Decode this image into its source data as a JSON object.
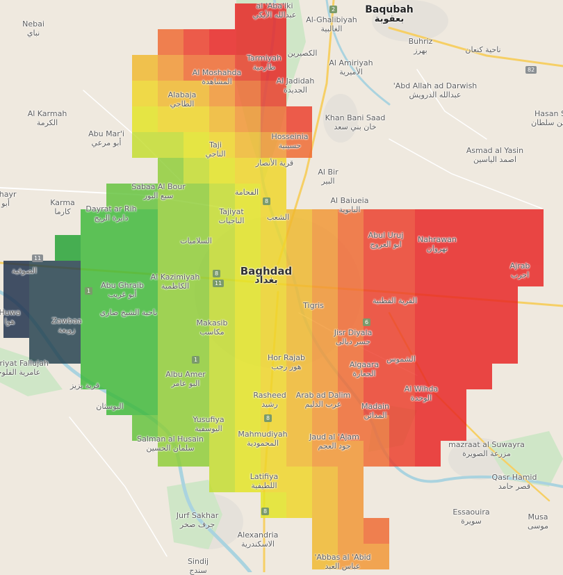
{
  "map": {
    "colors": {
      "land": "#efe9df",
      "urban": "#e6e2dc",
      "river": "#aad3df",
      "vegetation": "#cfe6c7",
      "major_road": "#f6cf65",
      "minor_road": "#ffffff"
    },
    "labels": [
      {
        "id": "nebai",
        "en": "Nebai",
        "ar": "نباي"
      },
      {
        "id": "alabaiki",
        "en": "al 'Aba'iki",
        "ar": "عبدالله الأيكي"
      },
      {
        "id": "alghalibiyah",
        "en": "Al-Ghalibiyah",
        "ar": "الغالبية"
      },
      {
        "id": "baqubah",
        "en": "Baqubah",
        "ar": "بعقوبة"
      },
      {
        "id": "buhriz",
        "en": "Buhriz",
        "ar": "بهرز"
      },
      {
        "id": "kanaan",
        "en": "",
        "ar": "ناحية كنعان"
      },
      {
        "id": "tarmiyah",
        "en": "Tarmiyah",
        "ar": "طارمية"
      },
      {
        "id": "alkaseerin",
        "en": "",
        "ar": "الكصيرين"
      },
      {
        "id": "alamiriyah",
        "en": "Al Amiriyah",
        "ar": "الأميرية"
      },
      {
        "id": "almoshahda",
        "en": "Al Moshahda",
        "ar": "المشاهدة"
      },
      {
        "id": "aljadidah",
        "en": "Al Jadidah",
        "ar": "الجديدة"
      },
      {
        "id": "alabaja",
        "en": "Alabaja",
        "ar": "الطاجي"
      },
      {
        "id": "abdallah",
        "en": "'Abd Allah ad Darwish",
        "ar": "عبدالله الدرويش"
      },
      {
        "id": "hasansu",
        "en": "Hasan Su",
        "ar": "حسن سلطان"
      },
      {
        "id": "alkarmah",
        "en": "Al Karmah",
        "ar": "الكرمة"
      },
      {
        "id": "khanbanisaad",
        "en": "Khan Bani Saad",
        "ar": "خان بني سعد"
      },
      {
        "id": "abumari",
        "en": "Abu Mar'i",
        "ar": "أبو مرعي"
      },
      {
        "id": "hosseinia",
        "en": "Hosseinia",
        "ar": "حسينية"
      },
      {
        "id": "taji",
        "en": "Taji",
        "ar": "التاجي"
      },
      {
        "id": "alansar",
        "en": "",
        "ar": "قرية الأنصار"
      },
      {
        "id": "asmad",
        "en": "Asmad al Yasin",
        "ar": "اصمد الياسين"
      },
      {
        "id": "albir",
        "en": "Al Bir",
        "ar": "البير"
      },
      {
        "id": "sabaa",
        "en": "Sabaa Al Bour",
        "ar": "سبع البور"
      },
      {
        "id": "khayr",
        "en": "khayr",
        "ar": "أبو"
      },
      {
        "id": "karma",
        "en": "Karma",
        "ar": "كارما"
      },
      {
        "id": "dayrat",
        "en": "Dayrat ar Rih",
        "ar": "دايرة الريح"
      },
      {
        "id": "alfajama",
        "en": "",
        "ar": "الفحامة"
      },
      {
        "id": "albaiueia",
        "en": "Al Baiueia",
        "ar": "البابوية"
      },
      {
        "id": "tajiyat",
        "en": "Tajiyat",
        "ar": "الناجيات"
      },
      {
        "id": "alshaab",
        "en": "",
        "ar": "الشعب"
      },
      {
        "id": "abuuruj",
        "en": "Abul Uruj",
        "ar": "ابو العروج"
      },
      {
        "id": "alsalamiyat",
        "en": "",
        "ar": "السلاميات"
      },
      {
        "id": "nahrawan",
        "en": "Nahrawan",
        "ar": "نهروان"
      },
      {
        "id": "fallujah_s",
        "en": "",
        "ar": "الصوفية"
      },
      {
        "id": "alkazimiyah",
        "en": "Al Kazimiyah",
        "ar": "الكاظمية"
      },
      {
        "id": "baghdad",
        "en": "Baghdad",
        "ar": "بغداد"
      },
      {
        "id": "ajrab",
        "en": "Ajrab",
        "ar": "اجرب"
      },
      {
        "id": "abughraib",
        "en": "Abu Ghraib",
        "ar": "أبو غريب"
      },
      {
        "id": "sheikh",
        "en": "",
        "ar": "ناحية الشيخ ضاري"
      },
      {
        "id": "qaryah",
        "en": "",
        "ar": "القرية القطنية"
      },
      {
        "id": "huwa",
        "en": "Huwa",
        "ar": "هوا"
      },
      {
        "id": "zawbaa",
        "en": "Zawbaa",
        "ar": "زوبعة"
      },
      {
        "id": "tigris",
        "en": "Tigris",
        "ar": ""
      },
      {
        "id": "makasib",
        "en": "Makasib",
        "ar": "مكاسب"
      },
      {
        "id": "jisrdiyala",
        "en": "Jisr Diyala",
        "ar": "جسر ديالى"
      },
      {
        "id": "amiriyat",
        "en": "Amiriyat Fallujah",
        "ar": "عامرية الفلوجة"
      },
      {
        "id": "horrajab",
        "en": "Hor Rajab",
        "ar": "هور رجب"
      },
      {
        "id": "alshamus",
        "en": "",
        "ar": "الشموس"
      },
      {
        "id": "albuamer",
        "en": "Albu Amer",
        "ar": "البو عامر"
      },
      {
        "id": "algaara",
        "en": "Algaara",
        "ar": "الجعارة"
      },
      {
        "id": "qaryabuziz",
        "en": "",
        "ar": "قرية بزيز"
      },
      {
        "id": "rasheed",
        "en": "Rasheed",
        "ar": "رشيد"
      },
      {
        "id": "arabaddalim",
        "en": "Arab ad Dalim",
        "ar": "عرب الدليم"
      },
      {
        "id": "alwihda",
        "en": "Al Wihda",
        "ar": "الوحدة"
      },
      {
        "id": "madain",
        "en": "Madain",
        "ar": "المدائن"
      },
      {
        "id": "albusitan",
        "en": "",
        "ar": "البوسثان"
      },
      {
        "id": "yusufiya",
        "en": "Yusufiya",
        "ar": "اليوسفية"
      },
      {
        "id": "mahmudiyah",
        "en": "Mahmudiyah",
        "ar": "المحمودية"
      },
      {
        "id": "jaudalajam",
        "en": "Jaud al 'Ajam",
        "ar": "جود العجم"
      },
      {
        "id": "mazraat",
        "en": "mazraat al Suwayra",
        "ar": "مزرعة الصويرة"
      },
      {
        "id": "salman",
        "en": "Salman al Husain",
        "ar": "سلمان الحسين"
      },
      {
        "id": "qasrhamid",
        "en": "Qasr Hamid",
        "ar": "قصر حامد"
      },
      {
        "id": "latifiya",
        "en": "Latifiya",
        "ar": "اللطيفية"
      },
      {
        "id": "essaouira",
        "en": "Essaouira",
        "ar": "سويرة"
      },
      {
        "id": "musa",
        "en": "Musa",
        "ar": "موسى"
      },
      {
        "id": "jurfsakhar",
        "en": "Jurf Sakhar",
        "ar": "جرف صخر"
      },
      {
        "id": "alexandria",
        "en": "Alexandria",
        "ar": "الاسكندرية"
      },
      {
        "id": "abbasalabid",
        "en": "'Abbas al 'Abid",
        "ar": "عباس العبد"
      },
      {
        "id": "sindij",
        "en": "Sindij",
        "ar": "سندج"
      }
    ],
    "route_shields": [
      "2",
      "82",
      "11",
      "1",
      "11",
      "8",
      "6",
      "1",
      "8",
      "8",
      "8"
    ],
    "heatmap": {
      "palette": [
        "#1c2e4a",
        "#213f4d",
        "#1c6b35",
        "#22a233",
        "#3db939",
        "#62c33b",
        "#8ecd36",
        "#c4dd2e",
        "#e3e523",
        "#efd628",
        "#f1b92e",
        "#f29532",
        "#f06830",
        "#ec3c2a",
        "#e82222"
      ],
      "legend": "",
      "note": ""
    }
  }
}
